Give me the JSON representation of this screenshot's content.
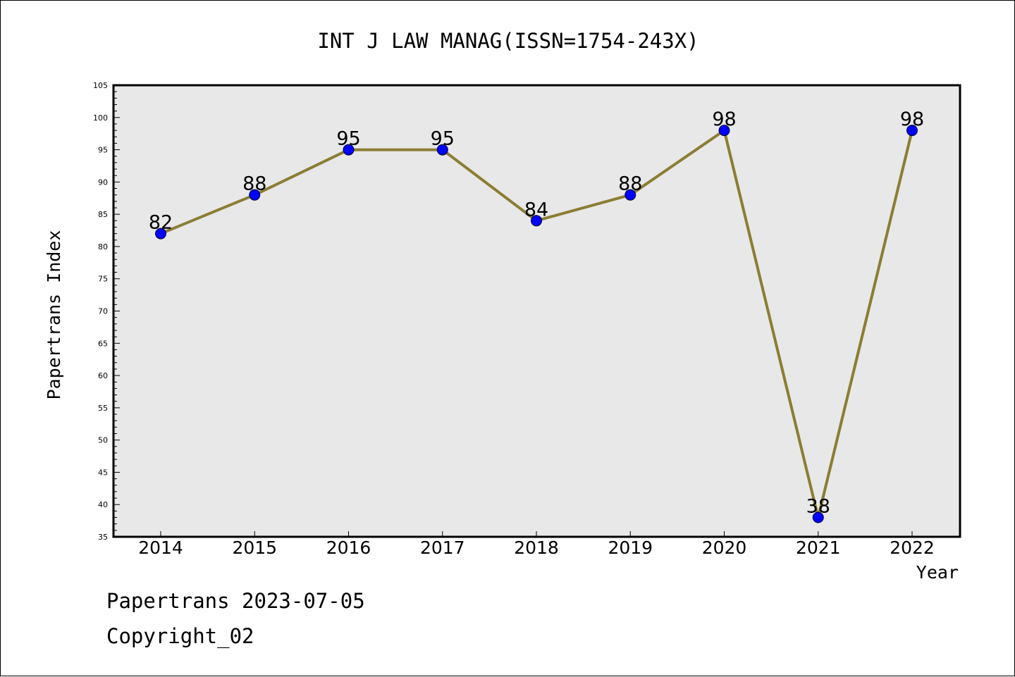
{
  "footer": {
    "line1": "Papertrans 2023-07-05",
    "line2": "Copyright_02"
  },
  "colors": {
    "plot_background": "#e8e8e8",
    "line": "#8b7d33",
    "marker": "#0000ff"
  },
  "chart_data": {
    "type": "line",
    "title": "INT J LAW MANAG(ISSN=1754-243X)",
    "xlabel": "Year",
    "ylabel": "Papertrans Index",
    "categories": [
      "2014",
      "2015",
      "2016",
      "2017",
      "2018",
      "2019",
      "2020",
      "2021",
      "2022"
    ],
    "values": [
      82,
      88,
      95,
      95,
      84,
      88,
      98,
      38,
      98
    ],
    "ylim": [
      35,
      105
    ],
    "yticks": [
      35,
      40,
      45,
      50,
      55,
      60,
      65,
      70,
      75,
      80,
      85,
      90,
      95,
      100,
      105
    ],
    "grid": false,
    "legend": "none"
  }
}
